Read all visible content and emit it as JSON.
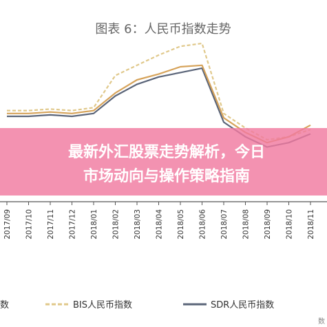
{
  "chart_data": {
    "type": "line",
    "title": "图表 6：人民币指数走势",
    "categories": [
      "2017/09",
      "2017/10",
      "2017/11",
      "2017/12",
      "2018/01",
      "2018/02",
      "2018/03",
      "2018/04",
      "2018/05",
      "2018/06",
      "2018/07",
      "2018/08",
      "2018/09",
      "2018/10",
      "2018/11"
    ],
    "ylim": [
      0,
      100
    ],
    "grid": false,
    "legend": "bottom",
    "series": [
      {
        "name": "数",
        "color": "#d6a35a",
        "style": "solid",
        "values": [
          60,
          60,
          61,
          60,
          62,
          74,
          83,
          87,
          92,
          93,
          57,
          47,
          40,
          44,
          52
        ]
      },
      {
        "name": "BIS人民币指数",
        "color": "#e0c88a",
        "style": "dashed",
        "values": [
          62,
          62,
          63,
          62,
          64,
          86,
          93,
          100,
          106,
          108,
          60,
          50,
          42,
          44,
          49
        ]
      },
      {
        "name": "SDR人民币指数",
        "color": "#5a6478",
        "style": "solid",
        "values": [
          58,
          58,
          59,
          58,
          60,
          72,
          80,
          85,
          88,
          91,
          54,
          44,
          37,
          40,
          46
        ]
      }
    ]
  },
  "legend_prefix": "数",
  "overlay": {
    "line1": "最新外汇股票走势解析，今日",
    "line2": "市场动向与操作策略指南"
  },
  "corner_label": "数",
  "colors": {
    "banner": "#f07aa0",
    "axis": "#555555"
  }
}
